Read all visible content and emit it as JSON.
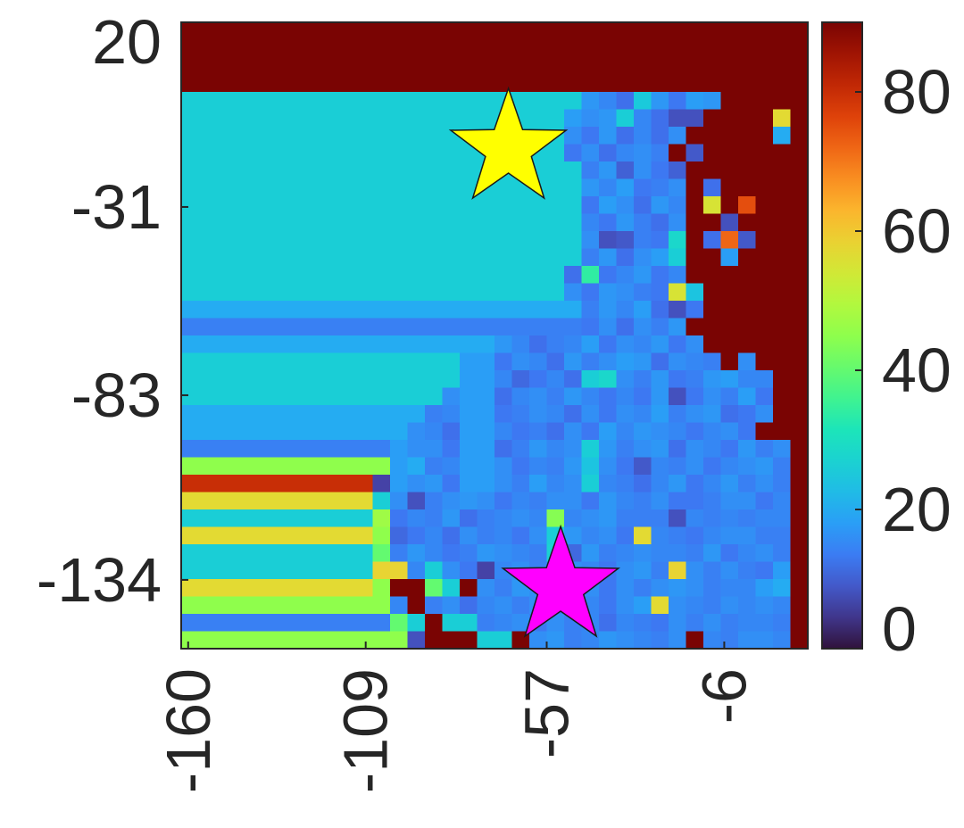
{
  "chart_data": {
    "type": "heatmap",
    "title": "",
    "xlabel": "",
    "ylabel": "",
    "colormap": "turbo",
    "x_range": [
      -162,
      18
    ],
    "y_range": [
      -153,
      20
    ],
    "x_ticks": [
      "-160",
      "-109",
      "-57",
      "-6"
    ],
    "x_tick_values": [
      -160,
      -109,
      -57,
      -6
    ],
    "y_ticks": [
      "20",
      "-31",
      "-83",
      "-134"
    ],
    "y_tick_values": [
      20,
      -31,
      -83,
      -134
    ],
    "colorbar": {
      "range": [
        0,
        90
      ],
      "ticks": [
        "0",
        "20",
        "40",
        "60",
        "80"
      ],
      "tick_values": [
        0,
        20,
        40,
        60,
        80
      ]
    },
    "grid": {
      "rows": 36,
      "cols": 36,
      "values": [
        [
          90,
          90,
          90,
          90,
          90,
          90,
          90,
          90,
          90,
          90,
          90,
          90,
          90,
          90,
          90,
          90,
          90,
          90,
          90,
          90,
          90,
          90,
          90,
          90,
          90,
          90,
          90,
          90,
          90,
          90,
          90,
          90,
          90,
          90,
          90,
          90
        ],
        [
          90,
          90,
          90,
          90,
          90,
          90,
          90,
          90,
          90,
          90,
          90,
          90,
          90,
          90,
          90,
          90,
          90,
          90,
          90,
          90,
          90,
          90,
          90,
          90,
          90,
          90,
          90,
          90,
          90,
          90,
          90,
          90,
          90,
          90,
          90,
          90
        ],
        [
          90,
          90,
          90,
          90,
          90,
          90,
          90,
          90,
          90,
          90,
          90,
          90,
          90,
          90,
          90,
          90,
          90,
          90,
          90,
          90,
          90,
          90,
          90,
          90,
          90,
          90,
          90,
          90,
          90,
          90,
          90,
          90,
          90,
          90,
          90,
          90
        ],
        [
          90,
          90,
          90,
          90,
          90,
          90,
          90,
          90,
          90,
          90,
          90,
          90,
          90,
          90,
          90,
          90,
          90,
          90,
          90,
          90,
          90,
          90,
          90,
          90,
          90,
          90,
          90,
          90,
          90,
          90,
          90,
          90,
          90,
          90,
          90,
          90
        ],
        [
          26,
          26,
          26,
          26,
          26,
          26,
          26,
          26,
          26,
          26,
          26,
          26,
          26,
          26,
          26,
          26,
          26,
          26,
          26,
          26,
          26,
          26,
          26,
          17,
          15,
          12,
          25,
          17,
          13,
          18,
          17,
          90,
          90,
          90,
          90,
          90
        ],
        [
          26,
          26,
          26,
          26,
          26,
          26,
          26,
          26,
          26,
          26,
          26,
          26,
          26,
          26,
          26,
          26,
          26,
          26,
          26,
          26,
          26,
          26,
          18,
          16,
          17,
          26,
          15,
          12,
          8,
          8,
          90,
          90,
          90,
          90,
          57,
          90
        ],
        [
          26,
          26,
          26,
          26,
          26,
          26,
          26,
          26,
          26,
          26,
          26,
          26,
          26,
          26,
          26,
          26,
          26,
          26,
          26,
          26,
          26,
          26,
          16,
          13,
          17,
          12,
          15,
          12,
          16,
          90,
          90,
          90,
          90,
          90,
          20,
          90
        ],
        [
          26,
          26,
          26,
          26,
          26,
          26,
          26,
          26,
          26,
          26,
          26,
          26,
          26,
          26,
          26,
          26,
          26,
          26,
          26,
          26,
          26,
          26,
          13,
          16,
          12,
          15,
          16,
          14,
          90,
          9,
          90,
          90,
          90,
          90,
          90,
          90
        ],
        [
          26,
          26,
          26,
          26,
          26,
          26,
          26,
          26,
          26,
          26,
          26,
          26,
          26,
          26,
          26,
          26,
          26,
          26,
          26,
          26,
          26,
          26,
          26,
          14,
          17,
          10,
          16,
          13,
          10,
          90,
          90,
          90,
          90,
          90,
          90,
          90
        ],
        [
          26,
          26,
          26,
          26,
          26,
          26,
          26,
          26,
          26,
          26,
          26,
          26,
          26,
          26,
          26,
          26,
          26,
          26,
          26,
          26,
          26,
          26,
          26,
          17,
          15,
          18,
          13,
          14,
          16,
          90,
          12,
          90,
          90,
          90,
          90,
          90
        ],
        [
          26,
          26,
          26,
          26,
          26,
          26,
          26,
          26,
          26,
          26,
          26,
          26,
          26,
          26,
          26,
          26,
          26,
          26,
          26,
          26,
          26,
          26,
          26,
          13,
          18,
          16,
          12,
          17,
          15,
          90,
          55,
          90,
          75,
          90,
          90,
          90
        ],
        [
          26,
          26,
          26,
          26,
          26,
          26,
          26,
          26,
          26,
          26,
          26,
          26,
          26,
          26,
          26,
          26,
          26,
          26,
          26,
          26,
          26,
          26,
          26,
          15,
          13,
          17,
          14,
          12,
          16,
          90,
          90,
          8,
          90,
          90,
          90,
          90
        ],
        [
          26,
          26,
          26,
          26,
          26,
          26,
          26,
          26,
          26,
          26,
          26,
          26,
          26,
          26,
          26,
          26,
          26,
          26,
          26,
          26,
          26,
          26,
          26,
          16,
          8,
          9,
          14,
          13,
          28,
          90,
          12,
          72,
          9,
          90,
          90,
          90
        ],
        [
          26,
          26,
          26,
          26,
          26,
          26,
          26,
          26,
          26,
          26,
          26,
          26,
          26,
          26,
          26,
          26,
          26,
          26,
          26,
          26,
          26,
          26,
          26,
          14,
          17,
          12,
          16,
          18,
          26,
          90,
          90,
          18,
          90,
          90,
          90,
          90
        ],
        [
          26,
          26,
          26,
          26,
          26,
          26,
          26,
          26,
          26,
          26,
          26,
          26,
          26,
          26,
          26,
          26,
          26,
          26,
          26,
          26,
          26,
          26,
          12,
          34,
          13,
          15,
          17,
          13,
          15,
          90,
          90,
          90,
          90,
          90,
          90,
          90
        ],
        [
          26,
          26,
          26,
          26,
          26,
          26,
          26,
          26,
          26,
          26,
          26,
          26,
          26,
          26,
          26,
          26,
          26,
          26,
          26,
          26,
          26,
          26,
          16,
          13,
          17,
          16,
          14,
          13,
          55,
          24,
          90,
          90,
          90,
          90,
          90,
          90
        ],
        [
          20,
          20,
          20,
          20,
          20,
          20,
          20,
          20,
          20,
          20,
          20,
          20,
          20,
          20,
          20,
          20,
          20,
          20,
          20,
          20,
          20,
          20,
          20,
          14,
          17,
          15,
          18,
          12,
          8,
          13,
          90,
          90,
          90,
          90,
          90,
          90
        ],
        [
          14,
          14,
          14,
          14,
          14,
          14,
          14,
          14,
          14,
          14,
          14,
          14,
          14,
          14,
          14,
          14,
          14,
          14,
          14,
          14,
          14,
          14,
          14,
          13,
          16,
          12,
          16,
          14,
          17,
          90,
          90,
          90,
          90,
          90,
          90,
          90
        ],
        [
          20,
          20,
          20,
          20,
          20,
          20,
          20,
          20,
          20,
          20,
          20,
          20,
          20,
          20,
          20,
          20,
          20,
          20,
          17,
          15,
          12,
          14,
          15,
          18,
          13,
          16,
          15,
          17,
          13,
          16,
          90,
          90,
          90,
          90,
          90,
          90
        ],
        [
          26,
          26,
          26,
          26,
          26,
          26,
          26,
          26,
          26,
          26,
          26,
          26,
          26,
          26,
          26,
          26,
          18,
          18,
          13,
          16,
          15,
          12,
          17,
          14,
          16,
          18,
          17,
          12,
          16,
          15,
          14,
          90,
          16,
          90,
          90,
          90
        ],
        [
          26,
          26,
          26,
          26,
          26,
          26,
          26,
          26,
          26,
          26,
          26,
          26,
          26,
          26,
          26,
          26,
          18,
          18,
          15,
          11,
          13,
          15,
          12,
          26,
          28,
          16,
          14,
          17,
          13,
          14,
          17,
          18,
          15,
          15,
          90,
          90
        ],
        [
          26,
          26,
          26,
          26,
          26,
          26,
          26,
          26,
          26,
          26,
          26,
          26,
          26,
          26,
          26,
          16,
          18,
          18,
          12,
          15,
          16,
          14,
          17,
          15,
          13,
          15,
          13,
          17,
          8,
          13,
          16,
          14,
          18,
          13,
          90,
          90
        ],
        [
          20,
          20,
          20,
          20,
          20,
          20,
          20,
          20,
          20,
          20,
          20,
          20,
          20,
          20,
          14,
          15,
          18,
          18,
          13,
          14,
          16,
          15,
          12,
          16,
          13,
          16,
          15,
          18,
          14,
          16,
          17,
          12,
          13,
          16,
          90,
          90
        ],
        [
          20,
          20,
          20,
          20,
          20,
          20,
          20,
          20,
          20,
          20,
          20,
          20,
          20,
          16,
          15,
          12,
          18,
          18,
          15,
          13,
          14,
          12,
          16,
          13,
          18,
          15,
          17,
          16,
          15,
          13,
          15,
          16,
          13,
          90,
          90,
          90
        ],
        [
          14,
          14,
          14,
          14,
          14,
          14,
          14,
          14,
          14,
          14,
          14,
          14,
          18,
          16,
          16,
          13,
          18,
          18,
          12,
          14,
          17,
          15,
          16,
          26,
          17,
          14,
          16,
          17,
          12,
          16,
          15,
          13,
          17,
          14,
          16,
          90
        ],
        [
          45,
          45,
          45,
          45,
          45,
          45,
          45,
          45,
          45,
          45,
          45,
          45,
          18,
          20,
          14,
          15,
          18,
          18,
          16,
          13,
          15,
          14,
          17,
          24,
          16,
          13,
          9,
          15,
          14,
          16,
          13,
          15,
          16,
          17,
          14,
          90
        ],
        [
          80,
          80,
          80,
          80,
          80,
          80,
          80,
          80,
          80,
          80,
          80,
          6,
          18,
          16,
          17,
          13,
          18,
          18,
          16,
          14,
          18,
          15,
          16,
          26,
          15,
          14,
          12,
          15,
          17,
          13,
          15,
          17,
          14,
          16,
          14,
          90
        ],
        [
          57,
          57,
          57,
          57,
          57,
          57,
          57,
          57,
          57,
          57,
          57,
          26,
          16,
          8,
          14,
          16,
          17,
          16,
          13,
          15,
          14,
          16,
          16,
          13,
          17,
          15,
          14,
          16,
          13,
          13,
          14,
          16,
          16,
          13,
          15,
          90
        ],
        [
          26,
          26,
          26,
          26,
          26,
          26,
          26,
          26,
          26,
          26,
          26,
          47,
          13,
          15,
          14,
          17,
          12,
          14,
          15,
          16,
          15,
          44,
          15,
          16,
          17,
          14,
          14,
          14,
          8,
          15,
          14,
          15,
          14,
          15,
          15,
          90
        ],
        [
          57,
          57,
          57,
          57,
          57,
          57,
          57,
          57,
          57,
          57,
          57,
          45,
          11,
          13,
          15,
          12,
          16,
          14,
          15,
          13,
          16,
          26,
          17,
          15,
          16,
          13,
          57,
          15,
          14,
          13,
          15,
          16,
          16,
          14,
          14,
          90
        ],
        [
          26,
          26,
          26,
          26,
          26,
          26,
          26,
          26,
          26,
          26,
          26,
          40,
          14,
          17,
          15,
          13,
          14,
          17,
          16,
          15,
          14,
          27,
          11,
          17,
          14,
          15,
          16,
          15,
          15,
          14,
          17,
          13,
          15,
          16,
          14,
          90
        ],
        [
          26,
          26,
          26,
          26,
          26,
          26,
          26,
          26,
          26,
          26,
          26,
          58,
          58,
          15,
          26,
          16,
          13,
          6,
          15,
          16,
          14,
          15,
          16,
          15,
          13,
          16,
          17,
          14,
          58,
          16,
          14,
          16,
          14,
          13,
          18,
          90
        ],
        [
          57,
          57,
          57,
          57,
          57,
          57,
          57,
          57,
          57,
          57,
          57,
          45,
          90,
          90,
          40,
          26,
          90,
          16,
          14,
          17,
          16,
          17,
          14,
          16,
          13,
          16,
          14,
          16,
          17,
          16,
          14,
          15,
          15,
          18,
          20,
          90
        ],
        [
          45,
          45,
          45,
          45,
          45,
          45,
          45,
          45,
          45,
          45,
          45,
          45,
          15,
          90,
          14,
          16,
          12,
          15,
          16,
          14,
          16,
          14,
          14,
          15,
          13,
          16,
          18,
          57,
          16,
          15,
          14,
          16,
          15,
          16,
          15,
          90
        ],
        [
          14,
          14,
          14,
          14,
          14,
          14,
          14,
          14,
          14,
          14,
          14,
          14,
          40,
          26,
          90,
          26,
          26,
          14,
          15,
          16,
          13,
          16,
          14,
          15,
          12,
          15,
          14,
          13,
          16,
          14,
          16,
          14,
          15,
          15,
          14,
          90
        ],
        [
          45,
          45,
          45,
          45,
          45,
          45,
          45,
          45,
          45,
          45,
          45,
          45,
          45,
          8,
          90,
          90,
          90,
          26,
          26,
          90,
          16,
          17,
          14,
          15,
          17,
          16,
          15,
          14,
          16,
          90,
          15,
          14,
          16,
          16,
          15,
          90
        ]
      ]
    },
    "markers": [
      {
        "name": "yellow-star",
        "shape": "star",
        "color": "#FFFF00",
        "x": -68,
        "y": -15
      },
      {
        "name": "magenta-star",
        "shape": "star",
        "color": "#FF00FF",
        "x": -53,
        "y": -136
      }
    ]
  }
}
